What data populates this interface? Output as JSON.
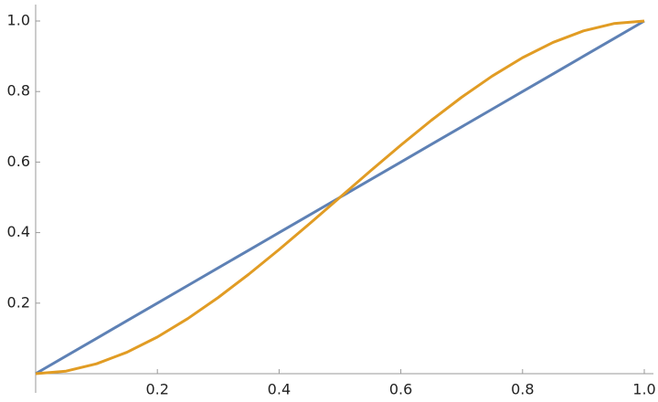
{
  "chart_data": {
    "type": "line",
    "x": [
      0,
      0.05,
      0.1,
      0.15,
      0.2,
      0.25,
      0.3,
      0.35,
      0.4,
      0.45,
      0.5,
      0.55,
      0.6,
      0.65,
      0.7,
      0.75,
      0.8,
      0.85,
      0.9,
      0.95,
      1
    ],
    "series": [
      {
        "color": "#5e81b5",
        "values": [
          0,
          0.05,
          0.1,
          0.15,
          0.2,
          0.25,
          0.3,
          0.35,
          0.4,
          0.45,
          0.5,
          0.55,
          0.6,
          0.65,
          0.7,
          0.75,
          0.8,
          0.85,
          0.9,
          0.95,
          1
        ]
      },
      {
        "color": "#e19c24",
        "values": [
          0,
          0.00725,
          0.028,
          0.06075,
          0.104,
          0.15625,
          0.216,
          0.28175,
          0.352,
          0.42525,
          0.5,
          0.57475,
          0.648,
          0.71825,
          0.784,
          0.84375,
          0.896,
          0.93925,
          0.972,
          0.99275,
          1
        ]
      }
    ],
    "xlim": [
      0,
      1
    ],
    "ylim": [
      0,
      1
    ],
    "xticks": [
      0.2,
      0.4,
      0.6,
      0.8,
      {
        "value": 1,
        "label": "1.0"
      }
    ],
    "yticks": [
      0.2,
      0.4,
      0.6,
      0.8,
      {
        "value": 1,
        "label": "1.0"
      }
    ]
  }
}
